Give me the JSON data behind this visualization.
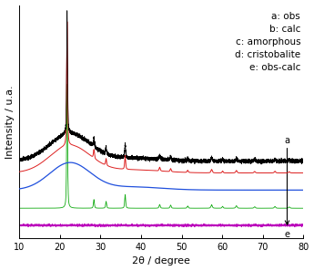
{
  "xlim": [
    10,
    80
  ],
  "xlabel": "2θ / degree",
  "ylabel": "Intensity / u.a.",
  "legend_labels": [
    "a: obs",
    "b: calc",
    "c: amorphous",
    "d: cristobalite",
    "e: obs-calc"
  ],
  "colors": {
    "obs": "#000000",
    "calc": "#dd2020",
    "amorphous": "#2050dd",
    "cristobalite": "#10aa10",
    "diff": "#bb00bb"
  },
  "background_color": "#ffffff",
  "axis_fontsize": 8,
  "legend_fontsize": 7.5,
  "tick_fontsize": 7
}
